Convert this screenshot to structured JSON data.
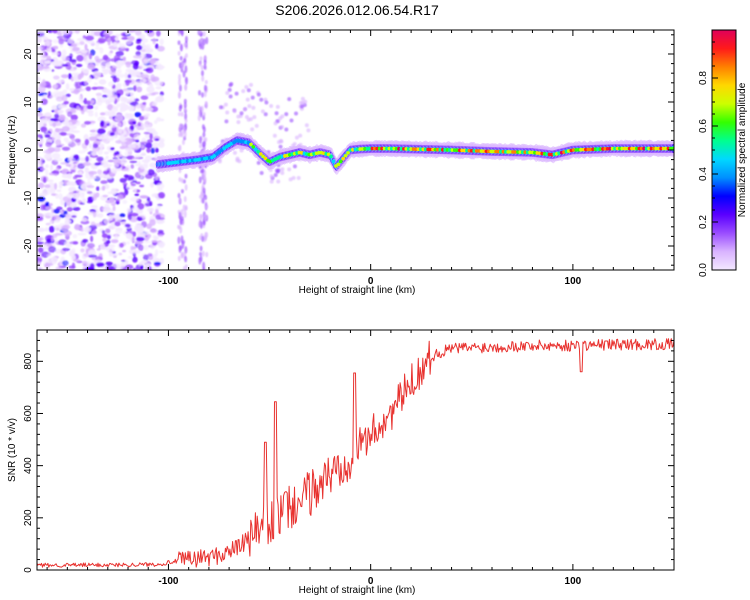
{
  "figure_title": "S206.2026.012.06.54.R17",
  "colors": {
    "snr_line": "#e8322f",
    "colormap": [
      "#f3e8ff",
      "#d9b3ff",
      "#9a4dff",
      "#5a00ff",
      "#0000ff",
      "#0090ff",
      "#00d8ff",
      "#00ff90",
      "#33ff00",
      "#ccff00",
      "#ffd800",
      "#ff8000",
      "#ff1a1a",
      "#e0005a"
    ]
  },
  "chart_data": [
    {
      "type": "heatmap",
      "name": "spectrogram",
      "xlabel": "Height of straight line (km)",
      "ylabel": "Frequency (Hz)",
      "xlim": [
        -165,
        150
      ],
      "ylim": [
        -25,
        25
      ],
      "xticks": [
        -100,
        0,
        100
      ],
      "xtick_labels": [
        "-100",
        "0",
        "100"
      ],
      "yticks": [
        -20,
        -10,
        0,
        10,
        20
      ],
      "ytick_labels": [
        "-20",
        "-10",
        "0",
        "10",
        "20"
      ],
      "colorbar": {
        "label": "Normalized spectral amplitude",
        "range": [
          0,
          1
        ],
        "ticks": [
          0,
          0.2,
          0.4,
          0.6,
          0.8
        ],
        "tick_labels": [
          "0.0",
          "0.2",
          "0.4",
          "0.6",
          "0.8"
        ]
      },
      "ridge": {
        "x": [
          -105,
          -95,
          -85,
          -78,
          -72,
          -66,
          -60,
          -54,
          -50,
          -45,
          -40,
          -35,
          -30,
          -25,
          -20,
          -17,
          -14,
          -10,
          -5,
          0,
          10,
          20,
          40,
          60,
          80,
          90,
          100,
          120,
          150
        ],
        "frequency": [
          -3,
          -2.5,
          -2,
          -1.5,
          0.5,
          2,
          1.5,
          -1,
          -2.5,
          -1.5,
          -1,
          -0.5,
          -1,
          -0.5,
          -1,
          -3.5,
          -2,
          0,
          0.2,
          0.3,
          0.3,
          0.2,
          0,
          -0.3,
          -0.5,
          -1,
          0,
          0.3,
          0.3
        ]
      }
    },
    {
      "type": "line",
      "name": "snr",
      "xlabel": "Height of straight line (km)",
      "ylabel": "SNR (10 * v/v)",
      "xlim": [
        -165,
        150
      ],
      "ylim": [
        0,
        920
      ],
      "xticks": [
        -100,
        0,
        100
      ],
      "xtick_labels": [
        "-100",
        "0",
        "100"
      ],
      "yticks": [
        0,
        200,
        400,
        600,
        800
      ],
      "ytick_labels": [
        "0",
        "200",
        "400",
        "600",
        "800"
      ],
      "trend": {
        "x": [
          -165,
          -120,
          -105,
          -95,
          -85,
          -75,
          -65,
          -55,
          -45,
          -35,
          -25,
          -15,
          -5,
          0,
          10,
          20,
          30,
          40,
          60,
          80,
          100,
          120,
          150
        ],
        "snr": [
          18,
          20,
          22,
          35,
          45,
          55,
          90,
          150,
          210,
          260,
          330,
          400,
          480,
          520,
          600,
          720,
          820,
          850,
          855,
          860,
          860,
          865,
          865
        ]
      },
      "spikes": [
        {
          "x": -52,
          "snr": 490
        },
        {
          "x": -47,
          "snr": 645
        },
        {
          "x": -42,
          "snr": 300
        },
        {
          "x": -8,
          "snr": 755
        },
        {
          "x": 104,
          "snr": 760
        }
      ]
    }
  ]
}
